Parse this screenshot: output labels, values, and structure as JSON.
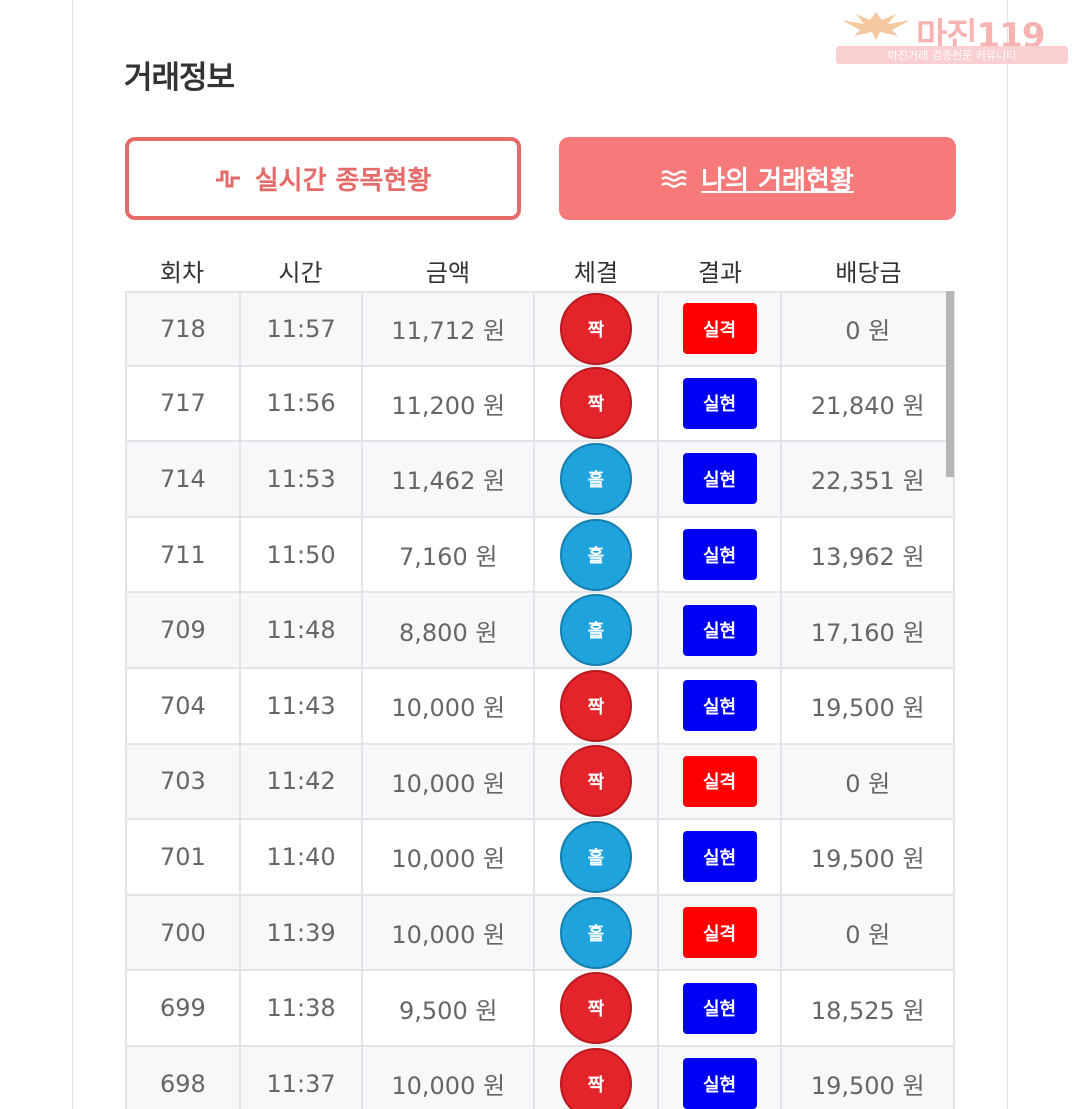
{
  "watermark": {
    "brand": "마진119",
    "subtitle": "마진거래 검증전문 커뮤니티"
  },
  "title": "거래정보",
  "tabs": [
    {
      "label": "실시간 종목현황",
      "icon": "pulse-wave-icon",
      "active": false
    },
    {
      "label": "나의 거래현황",
      "icon": "waves-icon",
      "active": true
    }
  ],
  "columns": [
    "회차",
    "시간",
    "금액",
    "체결",
    "결과",
    "배당금"
  ],
  "rows": [
    {
      "round": "718",
      "time": "11:57",
      "amount": "11,712 원",
      "pick": "짝",
      "pick_color": "red",
      "result": "실격",
      "result_type": "lose",
      "payout": "0 원"
    },
    {
      "round": "717",
      "time": "11:56",
      "amount": "11,200 원",
      "pick": "짝",
      "pick_color": "red",
      "result": "실현",
      "result_type": "win",
      "payout": "21,840 원"
    },
    {
      "round": "714",
      "time": "11:53",
      "amount": "11,462 원",
      "pick": "홀",
      "pick_color": "blue",
      "result": "실현",
      "result_type": "win",
      "payout": "22,351 원"
    },
    {
      "round": "711",
      "time": "11:50",
      "amount": "7,160 원",
      "pick": "홀",
      "pick_color": "blue",
      "result": "실현",
      "result_type": "win",
      "payout": "13,962 원"
    },
    {
      "round": "709",
      "time": "11:48",
      "amount": "8,800 원",
      "pick": "홀",
      "pick_color": "blue",
      "result": "실현",
      "result_type": "win",
      "payout": "17,160 원"
    },
    {
      "round": "704",
      "time": "11:43",
      "amount": "10,000 원",
      "pick": "짝",
      "pick_color": "red",
      "result": "실현",
      "result_type": "win",
      "payout": "19,500 원"
    },
    {
      "round": "703",
      "time": "11:42",
      "amount": "10,000 원",
      "pick": "짝",
      "pick_color": "red",
      "result": "실격",
      "result_type": "lose",
      "payout": "0 원"
    },
    {
      "round": "701",
      "time": "11:40",
      "amount": "10,000 원",
      "pick": "홀",
      "pick_color": "blue",
      "result": "실현",
      "result_type": "win",
      "payout": "19,500 원"
    },
    {
      "round": "700",
      "time": "11:39",
      "amount": "10,000 원",
      "pick": "홀",
      "pick_color": "blue",
      "result": "실격",
      "result_type": "lose",
      "payout": "0 원"
    },
    {
      "round": "699",
      "time": "11:38",
      "amount": "9,500 원",
      "pick": "짝",
      "pick_color": "red",
      "result": "실현",
      "result_type": "win",
      "payout": "18,525 원"
    },
    {
      "round": "698",
      "time": "11:37",
      "amount": "10,000 원",
      "pick": "짝",
      "pick_color": "red",
      "result": "실현",
      "result_type": "win",
      "payout": "19,500 원"
    }
  ],
  "colors": {
    "accent": "#f77a7a",
    "accent_border": "#e56b6b",
    "pick_red": "#e3242b",
    "pick_blue": "#1fa3dc",
    "lose": "#ff0000",
    "win": "#0000f5"
  }
}
